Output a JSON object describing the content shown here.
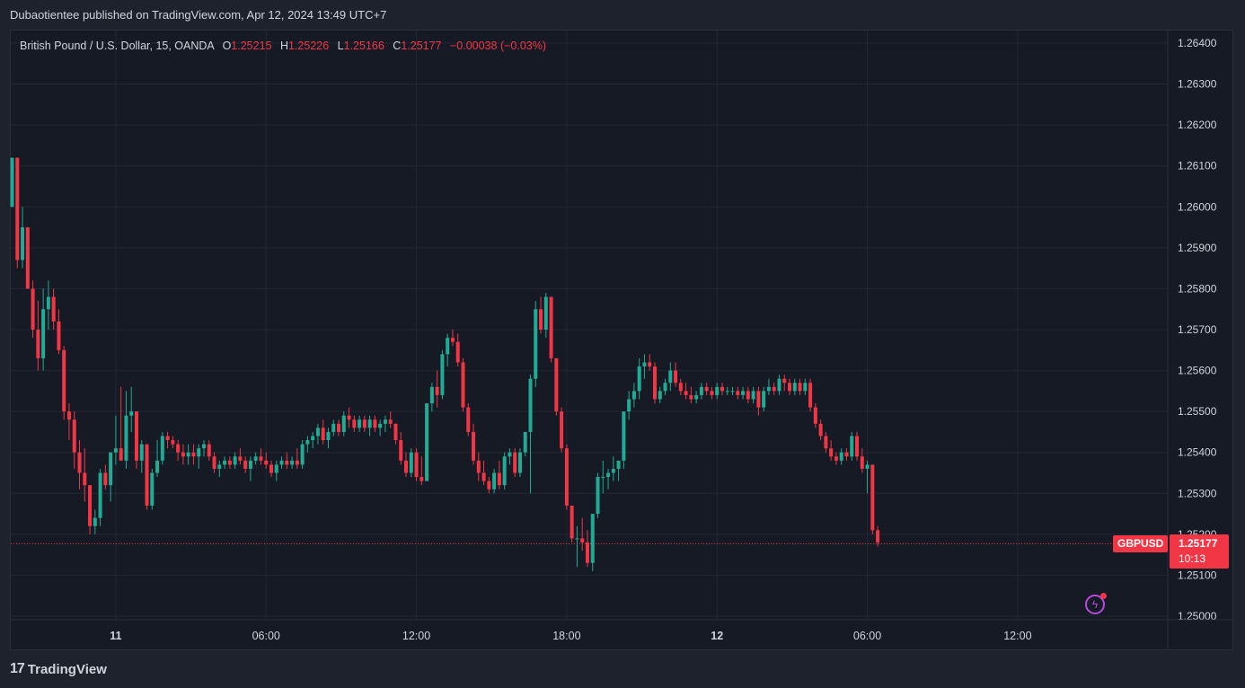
{
  "header": {
    "publisher_line": "Dubaotientee published on TradingView.com, Apr 12, 2024 13:49 UTC+7"
  },
  "legend": {
    "instrument": "British Pound / U.S. Dollar, 15, OANDA",
    "o_label": "O",
    "o_value": "1.25215",
    "h_label": "H",
    "h_value": "1.25226",
    "l_label": "L",
    "l_value": "1.25166",
    "c_label": "C",
    "c_value": "1.25177",
    "change": "−0.00038 (−0.03%)"
  },
  "badges": {
    "ticker": "GBPUSD",
    "last_price": "1.25177",
    "countdown": "10:13"
  },
  "footer": {
    "brand": "TradingView",
    "logo_mark": "17"
  },
  "colors": {
    "up": "#22ab94",
    "down": "#f23645",
    "background": "#161a25",
    "grid": "#232733",
    "text": "#d1d4dc",
    "accent": "#b84ade"
  },
  "icons": {
    "flash": "lightning-icon"
  },
  "chart_data": {
    "type": "candlestick",
    "title": "British Pound / U.S. Dollar, 15, OANDA",
    "ylim": [
      1.25,
      1.2645
    ],
    "y_ticks": [
      "1.26400",
      "1.26300",
      "1.26200",
      "1.26100",
      "1.26000",
      "1.25900",
      "1.25800",
      "1.25700",
      "1.25600",
      "1.25500",
      "1.25400",
      "1.25300",
      "1.25200",
      "1.25100",
      "1.25000"
    ],
    "x_ticks": [
      {
        "label": "11",
        "index": 20,
        "bold": true
      },
      {
        "label": "06:00",
        "index": 49,
        "bold": false
      },
      {
        "label": "12:00",
        "index": 78,
        "bold": false
      },
      {
        "label": "18:00",
        "index": 107,
        "bold": false
      },
      {
        "label": "12",
        "index": 136,
        "bold": true
      },
      {
        "label": "06:00",
        "index": 165,
        "bold": false
      },
      {
        "label": "12:00",
        "index": 194,
        "bold": false
      }
    ],
    "last_price": 1.25177,
    "grid": true,
    "ohlc": [
      [
        1.26,
        1.2612,
        1.26,
        1.2612
      ],
      [
        1.2612,
        1.2612,
        1.2585,
        1.2587
      ],
      [
        1.2587,
        1.26,
        1.2585,
        1.2595
      ],
      [
        1.2595,
        1.2595,
        1.258,
        1.258
      ],
      [
        1.258,
        1.2582,
        1.2568,
        1.257
      ],
      [
        1.257,
        1.2577,
        1.256,
        1.2563
      ],
      [
        1.2563,
        1.258,
        1.256,
        1.2575
      ],
      [
        1.2575,
        1.2582,
        1.257,
        1.2578
      ],
      [
        1.2578,
        1.258,
        1.257,
        1.2572
      ],
      [
        1.2572,
        1.2575,
        1.2564,
        1.2565
      ],
      [
        1.2565,
        1.2566,
        1.2548,
        1.255
      ],
      [
        1.255,
        1.2552,
        1.2543,
        1.2548
      ],
      [
        1.2548,
        1.255,
        1.2536,
        1.254
      ],
      [
        1.254,
        1.2543,
        1.2531,
        1.2535
      ],
      [
        1.2535,
        1.2541,
        1.2528,
        1.2532
      ],
      [
        1.2532,
        1.2532,
        1.252,
        1.2522
      ],
      [
        1.2522,
        1.2526,
        1.252,
        1.2524
      ],
      [
        1.2524,
        1.2536,
        1.2522,
        1.2535
      ],
      [
        1.2535,
        1.2537,
        1.2531,
        1.2532
      ],
      [
        1.2532,
        1.254,
        1.2528,
        1.254
      ],
      [
        1.254,
        1.2549,
        1.2537,
        1.2541
      ],
      [
        1.2541,
        1.2556,
        1.2538,
        1.2538
      ],
      [
        1.2538,
        1.2555,
        1.2536,
        1.2549
      ],
      [
        1.2549,
        1.2556,
        1.2545,
        1.255
      ],
      [
        1.255,
        1.255,
        1.2536,
        1.2538
      ],
      [
        1.2538,
        1.2543,
        1.2535,
        1.2542
      ],
      [
        1.2542,
        1.2542,
        1.2526,
        1.2527
      ],
      [
        1.2527,
        1.2536,
        1.2526,
        1.2535
      ],
      [
        1.2535,
        1.2543,
        1.2534,
        1.2538
      ],
      [
        1.2538,
        1.2545,
        1.2537,
        1.2544
      ],
      [
        1.2544,
        1.2545,
        1.2541,
        1.2543
      ],
      [
        1.2543,
        1.2544,
        1.2541,
        1.2542
      ],
      [
        1.2542,
        1.2543,
        1.2538,
        1.254
      ],
      [
        1.254,
        1.2542,
        1.2537,
        1.2539
      ],
      [
        1.2539,
        1.2542,
        1.2537,
        1.254
      ],
      [
        1.254,
        1.2542,
        1.2537,
        1.2539
      ],
      [
        1.2539,
        1.2542,
        1.2536,
        1.2541
      ],
      [
        1.2541,
        1.2543,
        1.2539,
        1.2542
      ],
      [
        1.2542,
        1.2543,
        1.2538,
        1.2539
      ],
      [
        1.2539,
        1.254,
        1.2535,
        1.2536
      ],
      [
        1.2536,
        1.2538,
        1.2534,
        1.2537
      ],
      [
        1.2537,
        1.2539,
        1.2536,
        1.2538
      ],
      [
        1.2538,
        1.2539,
        1.2536,
        1.2537
      ],
      [
        1.2537,
        1.254,
        1.2536,
        1.2539
      ],
      [
        1.2539,
        1.2541,
        1.2537,
        1.2538
      ],
      [
        1.2538,
        1.2539,
        1.2535,
        1.2536
      ],
      [
        1.2536,
        1.2539,
        1.2533,
        1.2538
      ],
      [
        1.2538,
        1.254,
        1.2537,
        1.2539
      ],
      [
        1.2539,
        1.2541,
        1.2537,
        1.2538
      ],
      [
        1.2538,
        1.254,
        1.2536,
        1.2537
      ],
      [
        1.2537,
        1.2538,
        1.2534,
        1.2535
      ],
      [
        1.2535,
        1.2538,
        1.2533,
        1.2537
      ],
      [
        1.2537,
        1.2539,
        1.2536,
        1.2538
      ],
      [
        1.2538,
        1.254,
        1.2536,
        1.2537
      ],
      [
        1.2537,
        1.2539,
        1.2536,
        1.2538
      ],
      [
        1.2538,
        1.2541,
        1.2536,
        1.2537
      ],
      [
        1.2537,
        1.2543,
        1.2536,
        1.2542
      ],
      [
        1.2542,
        1.2544,
        1.254,
        1.2543
      ],
      [
        1.2543,
        1.2545,
        1.2541,
        1.2544
      ],
      [
        1.2544,
        1.2547,
        1.2542,
        1.2546
      ],
      [
        1.2546,
        1.2548,
        1.2542,
        1.2543
      ],
      [
        1.2543,
        1.2546,
        1.2541,
        1.2545
      ],
      [
        1.2545,
        1.2548,
        1.2544,
        1.2547
      ],
      [
        1.2547,
        1.2548,
        1.2544,
        1.2545
      ],
      [
        1.2545,
        1.255,
        1.2544,
        1.2549
      ],
      [
        1.2549,
        1.2551,
        1.2546,
        1.2548
      ],
      [
        1.2548,
        1.2549,
        1.2545,
        1.2546
      ],
      [
        1.2546,
        1.2549,
        1.2545,
        1.2548
      ],
      [
        1.2548,
        1.2549,
        1.2545,
        1.2546
      ],
      [
        1.2546,
        1.2549,
        1.2544,
        1.2548
      ],
      [
        1.2548,
        1.2549,
        1.2545,
        1.2546
      ],
      [
        1.2546,
        1.2548,
        1.2544,
        1.2547
      ],
      [
        1.2547,
        1.2549,
        1.2545,
        1.2548
      ],
      [
        1.2548,
        1.255,
        1.2546,
        1.2547
      ],
      [
        1.2547,
        1.2547,
        1.2542,
        1.2543
      ],
      [
        1.2543,
        1.2545,
        1.2537,
        1.2538
      ],
      [
        1.2538,
        1.254,
        1.2534,
        1.2535
      ],
      [
        1.2535,
        1.2541,
        1.2534,
        1.254
      ],
      [
        1.254,
        1.2541,
        1.2533,
        1.2534
      ],
      [
        1.2534,
        1.2539,
        1.2532,
        1.2533
      ],
      [
        1.2533,
        1.2552,
        1.2533,
        1.2552
      ],
      [
        1.2552,
        1.2557,
        1.255,
        1.2556
      ],
      [
        1.2556,
        1.256,
        1.2551,
        1.2554
      ],
      [
        1.2554,
        1.2565,
        1.2553,
        1.2564
      ],
      [
        1.2564,
        1.2569,
        1.2561,
        1.2568
      ],
      [
        1.2568,
        1.257,
        1.2566,
        1.2567
      ],
      [
        1.2567,
        1.2569,
        1.2561,
        1.2562
      ],
      [
        1.2562,
        1.2563,
        1.255,
        1.2551
      ],
      [
        1.2551,
        1.2552,
        1.2544,
        1.2545
      ],
      [
        1.2545,
        1.2547,
        1.2537,
        1.2538
      ],
      [
        1.2538,
        1.254,
        1.2533,
        1.2535
      ],
      [
        1.2535,
        1.2538,
        1.2532,
        1.2533
      ],
      [
        1.2533,
        1.2534,
        1.253,
        1.2531
      ],
      [
        1.2531,
        1.2536,
        1.253,
        1.2535
      ],
      [
        1.2535,
        1.2538,
        1.2531,
        1.2532
      ],
      [
        1.2532,
        1.254,
        1.2531,
        1.2539
      ],
      [
        1.2539,
        1.2541,
        1.2537,
        1.254
      ],
      [
        1.254,
        1.2541,
        1.2534,
        1.2535
      ],
      [
        1.2535,
        1.2541,
        1.2534,
        1.254
      ],
      [
        1.254,
        1.2545,
        1.2539,
        1.2545
      ],
      [
        1.2545,
        1.2559,
        1.253,
        1.2558
      ],
      [
        1.2558,
        1.2577,
        1.2556,
        1.2575
      ],
      [
        1.2575,
        1.2578,
        1.2569,
        1.257
      ],
      [
        1.257,
        1.2579,
        1.2568,
        1.2578
      ],
      [
        1.2578,
        1.2578,
        1.2562,
        1.2563
      ],
      [
        1.2563,
        1.2563,
        1.2549,
        1.255
      ],
      [
        1.255,
        1.2551,
        1.254,
        1.2541
      ],
      [
        1.2541,
        1.2542,
        1.2526,
        1.2527
      ],
      [
        1.2527,
        1.2527,
        1.2518,
        1.2519
      ],
      [
        1.2519,
        1.2522,
        1.2512,
        1.2519
      ],
      [
        1.2519,
        1.2524,
        1.2516,
        1.2518
      ],
      [
        1.2518,
        1.2521,
        1.2512,
        1.2513
      ],
      [
        1.2513,
        1.2525,
        1.2511,
        1.2525
      ],
      [
        1.2525,
        1.2535,
        1.2524,
        1.2534
      ],
      [
        1.2534,
        1.2538,
        1.253,
        1.2534
      ],
      [
        1.2534,
        1.2536,
        1.2531,
        1.2535
      ],
      [
        1.2535,
        1.2539,
        1.2533,
        1.2536
      ],
      [
        1.2536,
        1.2537,
        1.2533,
        1.2538
      ],
      [
        1.2538,
        1.255,
        1.2536,
        1.255
      ],
      [
        1.255,
        1.2555,
        1.2548,
        1.2553
      ],
      [
        1.2553,
        1.2557,
        1.2551,
        1.2555
      ],
      [
        1.2555,
        1.2563,
        1.2553,
        1.2561
      ],
      [
        1.2561,
        1.2564,
        1.2558,
        1.2562
      ],
      [
        1.2562,
        1.2564,
        1.256,
        1.2561
      ],
      [
        1.2561,
        1.2562,
        1.2552,
        1.2553
      ],
      [
        1.2553,
        1.2556,
        1.2552,
        1.2555
      ],
      [
        1.2555,
        1.2558,
        1.2554,
        1.2557
      ],
      [
        1.2557,
        1.2562,
        1.2555,
        1.256
      ],
      [
        1.256,
        1.2562,
        1.2556,
        1.2557
      ],
      [
        1.2557,
        1.2558,
        1.2554,
        1.2555
      ],
      [
        1.2555,
        1.2557,
        1.2553,
        1.2554
      ],
      [
        1.2554,
        1.2556,
        1.2552,
        1.2553
      ],
      [
        1.2553,
        1.2555,
        1.2552,
        1.2554
      ],
      [
        1.2554,
        1.2557,
        1.2553,
        1.2556
      ],
      [
        1.2556,
        1.2557,
        1.2554,
        1.2555
      ],
      [
        1.2555,
        1.2556,
        1.2553,
        1.2554
      ],
      [
        1.2554,
        1.2557,
        1.2553,
        1.2556
      ],
      [
        1.2556,
        1.2557,
        1.2554,
        1.2555
      ],
      [
        1.2555,
        1.2556,
        1.2554,
        1.2555
      ],
      [
        1.2555,
        1.2556,
        1.2554,
        1.2555
      ],
      [
        1.2555,
        1.2556,
        1.2553,
        1.2554
      ],
      [
        1.2554,
        1.2556,
        1.2553,
        1.2555
      ],
      [
        1.2555,
        1.2556,
        1.2552,
        1.2553
      ],
      [
        1.2553,
        1.2556,
        1.2552,
        1.2555
      ],
      [
        1.2555,
        1.2556,
        1.2549,
        1.2551
      ],
      [
        1.2551,
        1.2556,
        1.255,
        1.2555
      ],
      [
        1.2555,
        1.2558,
        1.2554,
        1.2556
      ],
      [
        1.2556,
        1.2557,
        1.2554,
        1.2555
      ],
      [
        1.2555,
        1.2559,
        1.2554,
        1.2558
      ],
      [
        1.2558,
        1.2559,
        1.2555,
        1.2557
      ],
      [
        1.2557,
        1.2558,
        1.2554,
        1.2555
      ],
      [
        1.2555,
        1.2558,
        1.2554,
        1.2557
      ],
      [
        1.2557,
        1.2558,
        1.2554,
        1.2555
      ],
      [
        1.2555,
        1.2558,
        1.2554,
        1.2557
      ],
      [
        1.2557,
        1.2558,
        1.255,
        1.2551
      ],
      [
        1.2551,
        1.2552,
        1.2546,
        1.2547
      ],
      [
        1.2547,
        1.2548,
        1.2543,
        1.2544
      ],
      [
        1.2544,
        1.2545,
        1.254,
        1.2541
      ],
      [
        1.2541,
        1.2543,
        1.2538,
        1.2539
      ],
      [
        1.2539,
        1.254,
        1.2537,
        1.2538
      ],
      [
        1.2538,
        1.2541,
        1.2537,
        1.254
      ],
      [
        1.254,
        1.2541,
        1.2538,
        1.2539
      ],
      [
        1.2539,
        1.2545,
        1.2538,
        1.2544
      ],
      [
        1.2544,
        1.2545,
        1.2538,
        1.2539
      ],
      [
        1.2539,
        1.2541,
        1.2535,
        1.2536
      ],
      [
        1.2536,
        1.2538,
        1.253,
        1.2537
      ],
      [
        1.2537,
        1.2537,
        1.252,
        1.2521
      ],
      [
        1.2521,
        1.2522,
        1.2517,
        1.2518
      ]
    ]
  }
}
